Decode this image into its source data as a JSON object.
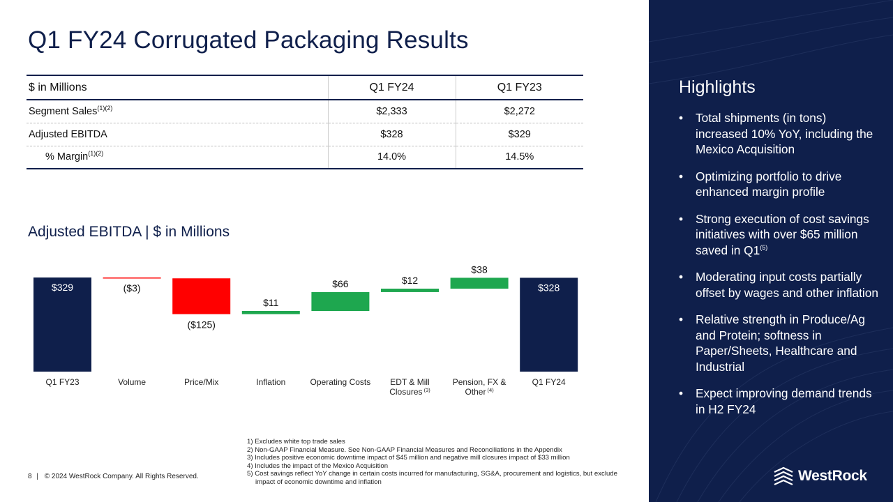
{
  "title": "Q1 FY24 Corrugated Packaging Results",
  "table": {
    "headers": [
      "$ in Millions",
      "Q1 FY24",
      "Q1 FY23"
    ],
    "rows": [
      {
        "label": "Segment Sales",
        "sup": "(1)(2)",
        "q1fy24": "$2,333",
        "q1fy23": "$2,272"
      },
      {
        "label": "Adjusted EBITDA",
        "sup": "",
        "q1fy24": "$328",
        "q1fy23": "$329"
      },
      {
        "label": "% Margin",
        "sup": "(1)(2)",
        "q1fy24": "14.0%",
        "q1fy23": "14.5%"
      }
    ]
  },
  "chart_title": "Adjusted EBITDA | $ in Millions",
  "chart_data": {
    "type": "bar",
    "subtype": "waterfall",
    "title": "Adjusted EBITDA | $ in Millions",
    "categories": [
      "Q1 FY23",
      "Volume",
      "Price/Mix",
      "Inflation",
      "Operating Costs",
      "EDT & Mill Closures",
      "Pension, FX & Other",
      "Q1 FY24"
    ],
    "category_notes": [
      "",
      "",
      "",
      "",
      "",
      "(3)",
      "(4)",
      ""
    ],
    "values": [
      329,
      -3,
      -125,
      11,
      66,
      12,
      38,
      328
    ],
    "kinds": [
      "total",
      "delta",
      "delta",
      "delta",
      "delta",
      "delta",
      "delta",
      "total"
    ],
    "labels": [
      "$329",
      "($3)",
      "($125)",
      "$11",
      "$66",
      "$12",
      "$38",
      "$328"
    ],
    "colors": {
      "total": "#0f1f4b",
      "increase": "#1ea74f",
      "decrease": "#ff0000"
    }
  },
  "footnotes": [
    "1) Excludes white top trade sales",
    "2) Non-GAAP Financial Measure. See Non-GAAP Financial Measures and Reconciliations in the Appendix",
    "3) Includes positive economic downtime impact of $45 million  and negative mill closures impact of $33 million",
    "4) Includes the impact of the Mexico Acquisition",
    "5) Cost savings reflect YoY change in certain costs incurred for manufacturing, SG&A, procurement and logistics, but exclude impact of economic downtime and inflation"
  ],
  "footer": {
    "page": "8",
    "divider": "|",
    "copyright": "© 2024 WestRock Company. All Rights Reserved."
  },
  "highlights": {
    "title": "Highlights",
    "bullet": "•",
    "items": [
      {
        "text": "Total shipments (in tons) increased 10% YoY, including the Mexico Acquisition",
        "sup": ""
      },
      {
        "text": "Optimizing portfolio to drive enhanced margin profile",
        "sup": ""
      },
      {
        "text": "Strong execution of cost savings initiatives with over $65 million saved in Q1",
        "sup": "(5)"
      },
      {
        "text": "Moderating input costs partially offset by wages and other inflation",
        "sup": ""
      },
      {
        "text": "Relative strength in Produce/Ag and Protein; softness in Paper/Sheets, Healthcare and Industrial",
        "sup": ""
      },
      {
        "text": "Expect improving demand trends in H2 FY24",
        "sup": ""
      }
    ]
  },
  "logo_text": "WestRock",
  "colors": {
    "navy": "#0f1f4b",
    "green": "#1ea74f",
    "red": "#ff0000"
  }
}
